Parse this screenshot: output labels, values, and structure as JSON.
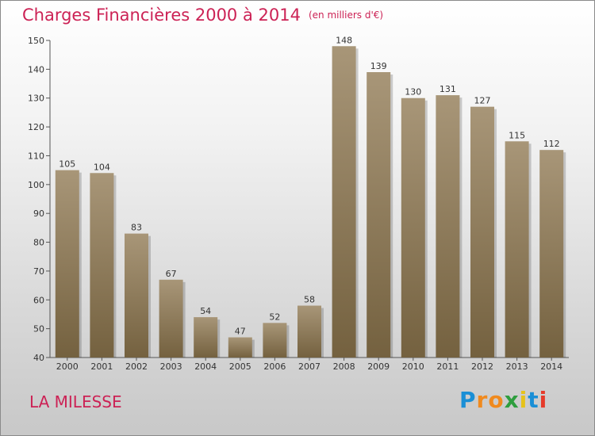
{
  "chart_data": {
    "type": "bar",
    "title": "Charges Financières 2000 à 2014",
    "subtitle": "(en milliers d'€)",
    "categories": [
      "2000",
      "2001",
      "2002",
      "2003",
      "2004",
      "2005",
      "2006",
      "2007",
      "2008",
      "2009",
      "2010",
      "2011",
      "2012",
      "2013",
      "2014"
    ],
    "values": [
      105,
      104,
      83,
      67,
      54,
      47,
      52,
      58,
      148,
      139,
      130,
      131,
      127,
      115,
      112
    ],
    "ylim": [
      40,
      150
    ],
    "yticks": [
      40,
      50,
      60,
      70,
      80,
      90,
      100,
      110,
      120,
      130,
      140,
      150
    ],
    "xlabel": "",
    "ylabel": "",
    "grid": false,
    "bar_color_top": "#a89678",
    "bar_color_bottom": "#74613f"
  },
  "location": "LA MILESSE",
  "logo": {
    "letters": [
      "P",
      "r",
      "o",
      "x",
      "i",
      "t",
      "i"
    ],
    "colors": [
      "#1a8fd6",
      "#f08a1e",
      "#f08a1e",
      "#2e9e3e",
      "#e6c21a",
      "#1a8fd6",
      "#e63a2a"
    ]
  },
  "colors": {
    "title": "#cc2255",
    "axis": "#555555"
  }
}
